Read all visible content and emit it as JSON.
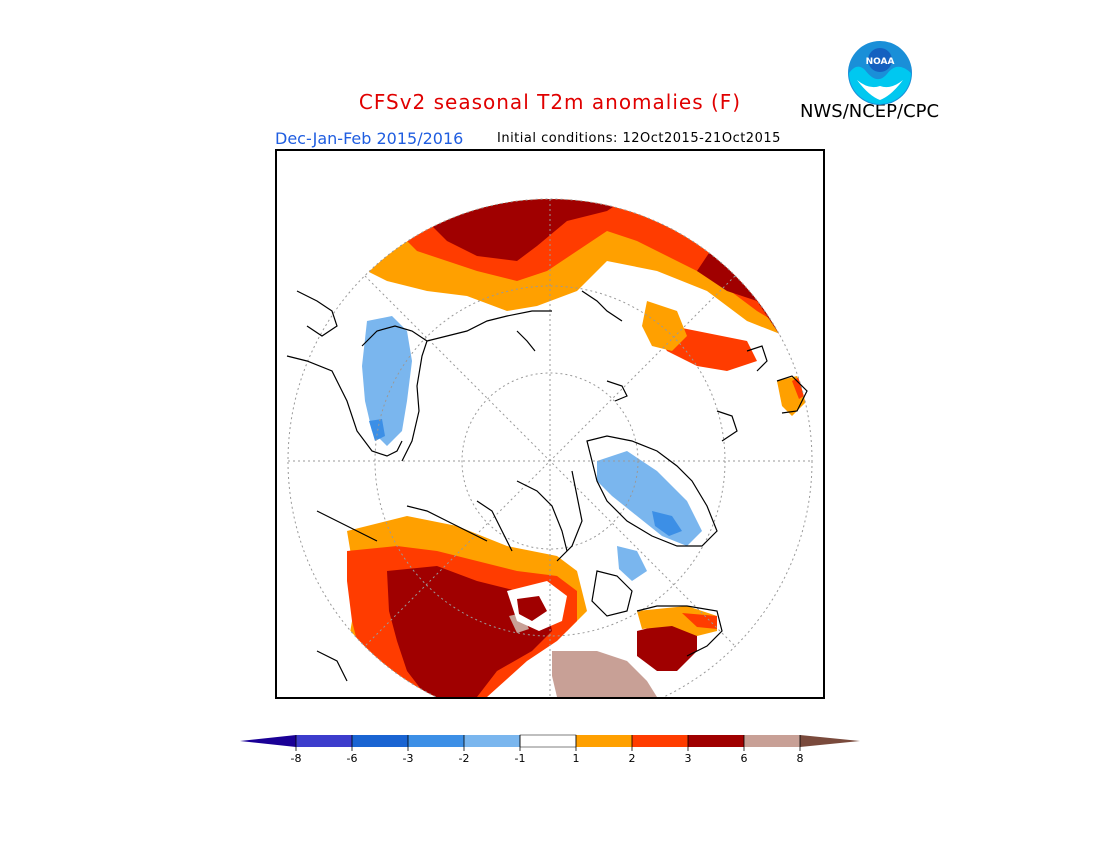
{
  "header": {
    "title": "CFSv2 seasonal T2m anomalies (F)",
    "season": "Dec-Jan-Feb 2015/2016",
    "initial_conditions": "Initial conditions: 12Oct2015-21Oct2015",
    "agency": "NWS/NCEP/CPC",
    "logo_text": "NOAA"
  },
  "colors": {
    "below_m8": "#1a0096",
    "m8_m6": "#3c3ccc",
    "m6_m3": "#1a64d2",
    "m3_m2": "#3c8fe6",
    "m2_m1": "#7ab6ee",
    "m1_p1": "#ffffff",
    "p1_p2": "#ffa000",
    "p2_p3": "#ff3c00",
    "p3_p6": "#a00000",
    "p6_p8": "#c8a096",
    "above_p8": "#7a4a3c"
  },
  "legend": {
    "ticks": [
      "-8",
      "-6",
      "-3",
      "-2",
      "-1",
      "1",
      "2",
      "3",
      "6",
      "8"
    ]
  }
}
